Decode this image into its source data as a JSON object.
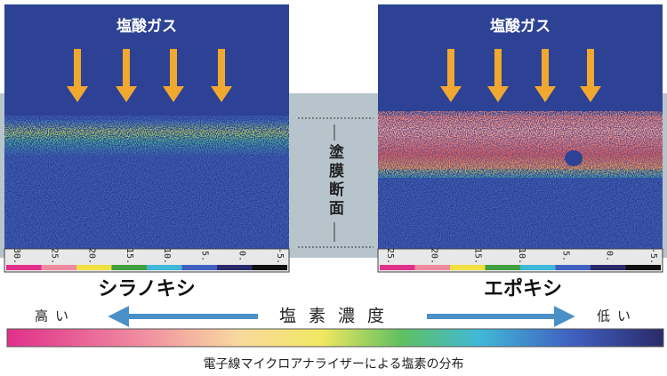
{
  "left_panel": {
    "gas_label": "塩酸ガス",
    "scale_labels": [
      "30.",
      "25.",
      "20.",
      "15.",
      "10.",
      "5.",
      "0.",
      "-5."
    ],
    "name": "シラノキシ"
  },
  "right_panel": {
    "gas_label": "塩酸ガス",
    "scale_labels": [
      "25.",
      "20.",
      "15.",
      "10.",
      "5.",
      "0.",
      "-5."
    ],
    "name": "エポキシ"
  },
  "section_label": "塗膜断面",
  "legend": {
    "high": "高い",
    "title": "塩素濃度",
    "low": "低い"
  },
  "caption": "電子線マイクロアナライザーによる塩素の分布"
}
